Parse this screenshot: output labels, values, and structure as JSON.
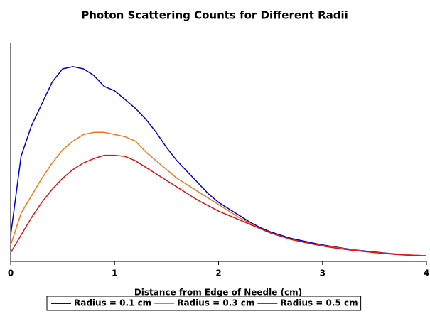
{
  "chart_data": {
    "type": "line",
    "title": "Photon Scattering Counts for Different Radii",
    "x_label": "Distance from Edge of Needle (cm)",
    "x": [
      0,
      0.1,
      0.2,
      0.3,
      0.4,
      0.5,
      0.6,
      0.7,
      0.8,
      0.9,
      1,
      1.1,
      1.2,
      1.3,
      1.4,
      1.5,
      1.6,
      1.7,
      1.8,
      1.9,
      2,
      2.1,
      2.2,
      2.3,
      2.4,
      2.5,
      2.6,
      2.7,
      2.8,
      2.9,
      3,
      3.1,
      3.2,
      3.3,
      3.4,
      3.5,
      3.6,
      3.7,
      3.8,
      3.9,
      4
    ],
    "series": [
      {
        "name": "Radius = 0.1 cm",
        "color": "#0000cc",
        "values": [
          12,
          48,
          62,
          72,
          82,
          88,
          89,
          88,
          85,
          80,
          78,
          74,
          70,
          65,
          59,
          52,
          46,
          41,
          36,
          31,
          27,
          24,
          21,
          18,
          15.5,
          13.5,
          12,
          10.5,
          9.5,
          8.5,
          7.5,
          6.8,
          6,
          5.3,
          4.8,
          4.3,
          3.8,
          3.4,
          3,
          2.8,
          2.6
        ]
      },
      {
        "name": "Radius = 0.3 cm",
        "color": "#f07818",
        "values": [
          7.5,
          22,
          30,
          38,
          45,
          51,
          55,
          58,
          59,
          59,
          58,
          57,
          55,
          50,
          46,
          42,
          38,
          35,
          32,
          29,
          26,
          23,
          20,
          17.5,
          15,
          13,
          11.5,
          10,
          9,
          8,
          7.2,
          6.5,
          5.8,
          5.2,
          4.6,
          4.1,
          3.7,
          3.3,
          3,
          2.8,
          2.6
        ]
      },
      {
        "name": "Radius = 0.5 cm",
        "color": "#e01010",
        "values": [
          4,
          12,
          20,
          27,
          33,
          38,
          42,
          45,
          47,
          48.5,
          48.5,
          48,
          46,
          43,
          40,
          37,
          34,
          31,
          28,
          25.5,
          23,
          21,
          19,
          17,
          15,
          13,
          11.5,
          10,
          9,
          8,
          7,
          6.3,
          5.6,
          5,
          4.5,
          4,
          3.6,
          3.2,
          2.9,
          2.7,
          2.5
        ]
      }
    ],
    "xlim": [
      0,
      4
    ],
    "xticks": [
      0,
      1,
      2,
      3,
      4
    ],
    "ylim": [
      0,
      100
    ],
    "legend": "bottom"
  }
}
